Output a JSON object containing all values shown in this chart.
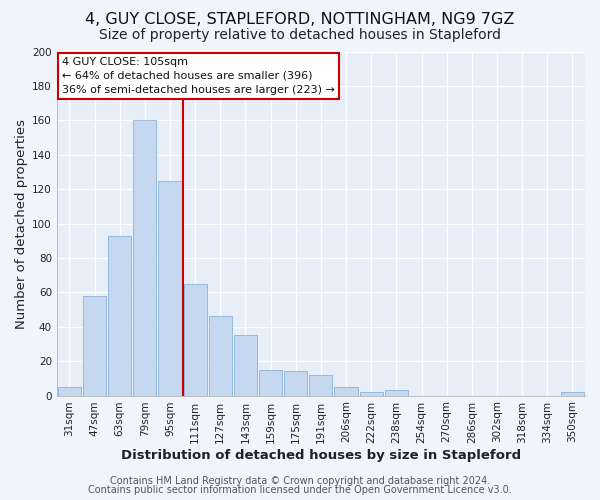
{
  "title": "4, GUY CLOSE, STAPLEFORD, NOTTINGHAM, NG9 7GZ",
  "subtitle": "Size of property relative to detached houses in Stapleford",
  "xlabel": "Distribution of detached houses by size in Stapleford",
  "ylabel": "Number of detached properties",
  "bar_labels": [
    "31sqm",
    "47sqm",
    "63sqm",
    "79sqm",
    "95sqm",
    "111sqm",
    "127sqm",
    "143sqm",
    "159sqm",
    "175sqm",
    "191sqm",
    "206sqm",
    "222sqm",
    "238sqm",
    "254sqm",
    "270sqm",
    "286sqm",
    "302sqm",
    "318sqm",
    "334sqm",
    "350sqm"
  ],
  "bar_values": [
    5,
    58,
    93,
    160,
    125,
    65,
    46,
    35,
    15,
    14,
    12,
    5,
    2,
    3,
    0,
    0,
    0,
    0,
    0,
    0,
    2
  ],
  "bar_color": "#c5d8f0",
  "bar_edge_color": "#8ab4d8",
  "vline_color": "#cc0000",
  "annotation_title": "4 GUY CLOSE: 105sqm",
  "annotation_line1": "← 64% of detached houses are smaller (396)",
  "annotation_line2": "36% of semi-detached houses are larger (223) →",
  "annotation_box_color": "#ffffff",
  "annotation_box_edge": "#cc0000",
  "ylim": [
    0,
    200
  ],
  "yticks": [
    0,
    20,
    40,
    60,
    80,
    100,
    120,
    140,
    160,
    180,
    200
  ],
  "footer1": "Contains HM Land Registry data © Crown copyright and database right 2024.",
  "footer2": "Contains public sector information licensed under the Open Government Licence v3.0.",
  "bg_color": "#f0f4fb",
  "plot_bg_color": "#e8eef8",
  "grid_color": "#ffffff",
  "title_fontsize": 11.5,
  "subtitle_fontsize": 10,
  "axis_label_fontsize": 9.5,
  "tick_fontsize": 7.5,
  "footer_fontsize": 7
}
